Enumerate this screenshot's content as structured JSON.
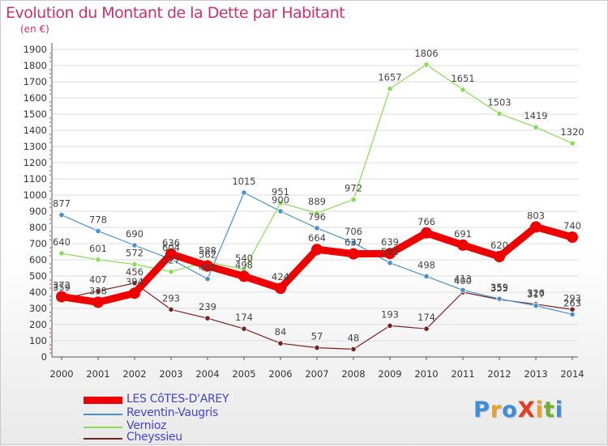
{
  "header": {
    "title": "Evolution du Montant de la Dette par Habitant",
    "unit": "(en €)"
  },
  "logo": {
    "text": "ProXiti",
    "colors": [
      "#3a8fd6",
      "#f0a020",
      "#3a8fd6",
      "#e04020",
      "#f0a020",
      "#70b030",
      "#3a8fd6"
    ]
  },
  "chart_data": {
    "type": "line",
    "title": "Evolution du Montant de la Dette par Habitant",
    "ylabel": "(en €)",
    "xlabel": "",
    "ylim": [
      0,
      1900
    ],
    "yticks": [
      0,
      100,
      200,
      300,
      400,
      500,
      600,
      700,
      800,
      900,
      1000,
      1100,
      1200,
      1300,
      1400,
      1500,
      1600,
      1700,
      1800,
      1900
    ],
    "x": [
      "2000",
      "2001",
      "2002",
      "2003",
      "2004",
      "2005",
      "2006",
      "2007",
      "2008",
      "2009",
      "2010",
      "2011",
      "2012",
      "2013",
      "2014"
    ],
    "grid": "horizontal",
    "legend_position": "bottom-left",
    "series": [
      {
        "name": "LES CôTES-D'AREY",
        "color": "#ee0000",
        "values": [
          372,
          338,
          394,
          636,
          562,
          498,
          424,
          664,
          637,
          639,
          766,
          691,
          620,
          803,
          740
        ],
        "labels": [
          "372",
          "338",
          "394",
          "636",
          "562",
          "498",
          "424",
          "664",
          "637",
          "639",
          "766",
          "691",
          "620",
          "803",
          "740"
        ]
      },
      {
        "name": "Reventin-Vaugris",
        "color": "#4a90d0",
        "values": [
          877,
          778,
          690,
          604,
          482,
          1015,
          900,
          796,
          706,
          581,
          498,
          413,
          359,
          317,
          263
        ],
        "labels": [
          "877",
          "778",
          "690",
          "604",
          "482",
          "1015",
          "900",
          "796",
          "706",
          "581",
          "498",
          "413",
          "359",
          "317",
          "263"
        ]
      },
      {
        "name": "Vernioz",
        "color": "#88dd55",
        "values": [
          640,
          601,
          572,
          527,
          588,
          540,
          951,
          889,
          972,
          1657,
          1806,
          1651,
          1503,
          1419,
          1320
        ],
        "labels": [
          "640",
          "601",
          "572",
          "527",
          "588",
          "540",
          "951",
          "889",
          "972",
          "1657",
          "1806",
          "1651",
          "1503",
          "1419",
          "1320"
        ]
      },
      {
        "name": "Cheyssieu",
        "color": "#772222",
        "values": [
          359,
          407,
          456,
          293,
          239,
          174,
          84,
          57,
          48,
          193,
          174,
          400,
          355,
          326,
          293
        ],
        "labels": [
          "359",
          "407",
          "456",
          "293",
          "239",
          "174",
          "84",
          "57",
          "48",
          "193",
          "174",
          "400",
          "355",
          "326",
          "293"
        ]
      }
    ]
  }
}
